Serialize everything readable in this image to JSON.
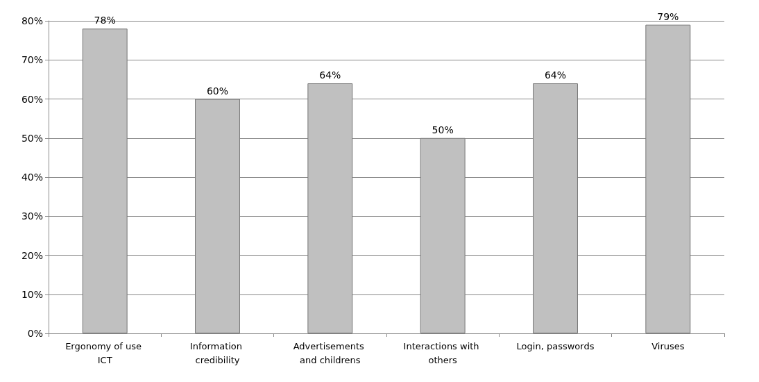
{
  "chart_data": {
    "type": "bar",
    "categories": [
      "Ergonomy of use ICT",
      "Information credibility",
      "Advertisements and childrens",
      "Interactions with others",
      "Login, passwords",
      "Viruses"
    ],
    "values": [
      78,
      60,
      64,
      50,
      64,
      79
    ],
    "value_labels": [
      "78%",
      "60%",
      "64%",
      "50%",
      "64%",
      "79%"
    ],
    "color": "#c0c0c0",
    "ylim": [
      0,
      80
    ],
    "yticks": [
      {
        "value": 0,
        "label": "0%"
      },
      {
        "value": 10,
        "label": "10%"
      },
      {
        "value": 20,
        "label": "20%"
      },
      {
        "value": 30,
        "label": "30%"
      },
      {
        "value": 40,
        "label": "40%"
      },
      {
        "value": 50,
        "label": "50%"
      },
      {
        "value": 60,
        "label": "60%"
      },
      {
        "value": 70,
        "label": "70%"
      },
      {
        "value": 80,
        "label": "80%"
      }
    ],
    "grid": "y"
  }
}
